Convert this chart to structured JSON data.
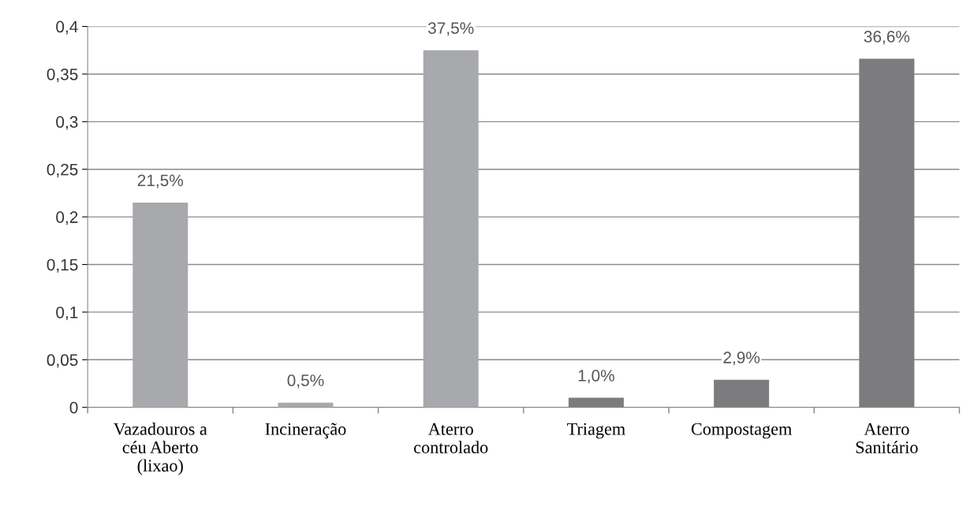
{
  "chart_data": {
    "type": "bar",
    "categories": [
      "Vazadouros a\ncéu Aberto\n(lixao)",
      "Incineração",
      "Aterro\ncontrolado",
      "Triagem",
      "Compostagem",
      "Aterro\nSanitário"
    ],
    "values": [
      0.215,
      0.005,
      0.375,
      0.01,
      0.029,
      0.366
    ],
    "colors": [
      "#a7a9ac",
      "#a7a9ac",
      "#a7a9ac",
      "#7c7c7e",
      "#7c7c7e",
      "#7c7c7e"
    ],
    "value_labels": [
      "21,5%",
      "0,5%",
      "37,5%",
      "1,0%",
      "2,9%",
      "36,6%"
    ],
    "ylim": [
      0,
      0.4
    ],
    "yticks": [
      0,
      {
        "value": 0.05,
        "label": "0,05"
      },
      {
        "value": 0.1,
        "label": "0,1"
      },
      {
        "value": 0.15,
        "label": "0,15"
      },
      {
        "value": 0.2,
        "label": "0,2"
      },
      {
        "value": 0.25,
        "label": "0,25"
      },
      {
        "value": 0.3,
        "label": "0,3"
      },
      {
        "value": 0.35,
        "label": "0,35"
      },
      {
        "value": 0.4,
        "label": "0,4"
      }
    ],
    "grid": "y"
  }
}
